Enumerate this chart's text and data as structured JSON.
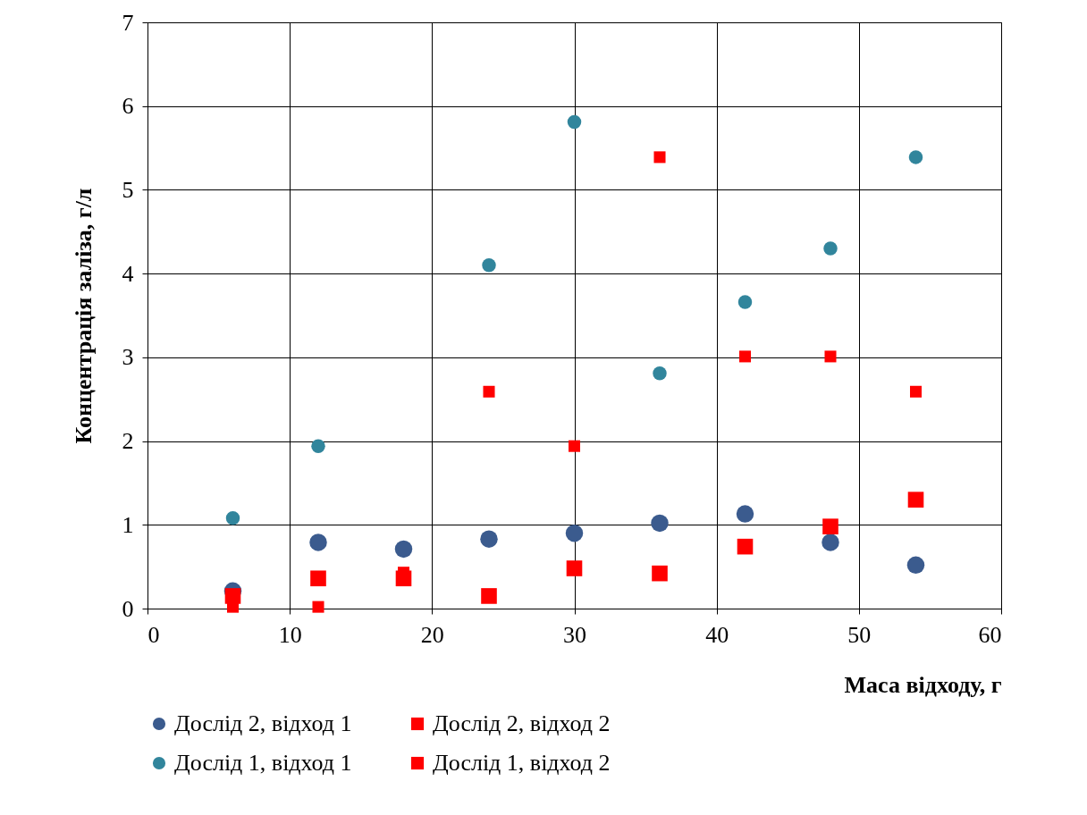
{
  "chart_data": {
    "type": "scatter",
    "xlabel": "Маса відходу, г",
    "ylabel": "Концентрація заліза, г/л",
    "xlim": [
      0,
      60
    ],
    "xticks": [
      0,
      10,
      20,
      30,
      40,
      50,
      60
    ],
    "ylim": [
      0,
      7
    ],
    "yticks": [
      0,
      1,
      2,
      3,
      4,
      5,
      6,
      7
    ],
    "grid": true,
    "legend": "bottom",
    "series": [
      {
        "name": "Дослід 2, відход 1",
        "color": "#3b5b8e",
        "marker": "circle",
        "x": [
          6,
          12,
          18,
          24,
          30,
          36,
          42,
          48,
          54
        ],
        "values": [
          0.21,
          0.79,
          0.71,
          0.83,
          0.9,
          1.02,
          1.13,
          0.79,
          0.52
        ]
      },
      {
        "name": "Дослід 2, відход 2",
        "color": "#ff0000",
        "marker": "square",
        "x": [
          6,
          12,
          18,
          24,
          30,
          36,
          42,
          48,
          54
        ],
        "values": [
          0.15,
          0.36,
          0.36,
          0.15,
          0.48,
          0.42,
          0.74,
          0.98,
          1.3
        ]
      },
      {
        "name": "Дослід 1, відход 1",
        "color": "#31859c",
        "marker": "circle",
        "x": [
          6,
          12,
          24,
          30,
          36,
          42,
          48,
          54
        ],
        "values": [
          1.08,
          1.94,
          4.1,
          5.81,
          2.81,
          3.66,
          4.3,
          5.39
        ]
      },
      {
        "name": "Дослід 1, відход 2",
        "color": "#ff0000",
        "marker": "square",
        "x": [
          6,
          12,
          18,
          24,
          30,
          36,
          42,
          48,
          54
        ],
        "values": [
          0.02,
          0.02,
          0.43,
          2.59,
          1.94,
          5.39,
          3.01,
          3.01,
          2.59
        ]
      }
    ]
  }
}
